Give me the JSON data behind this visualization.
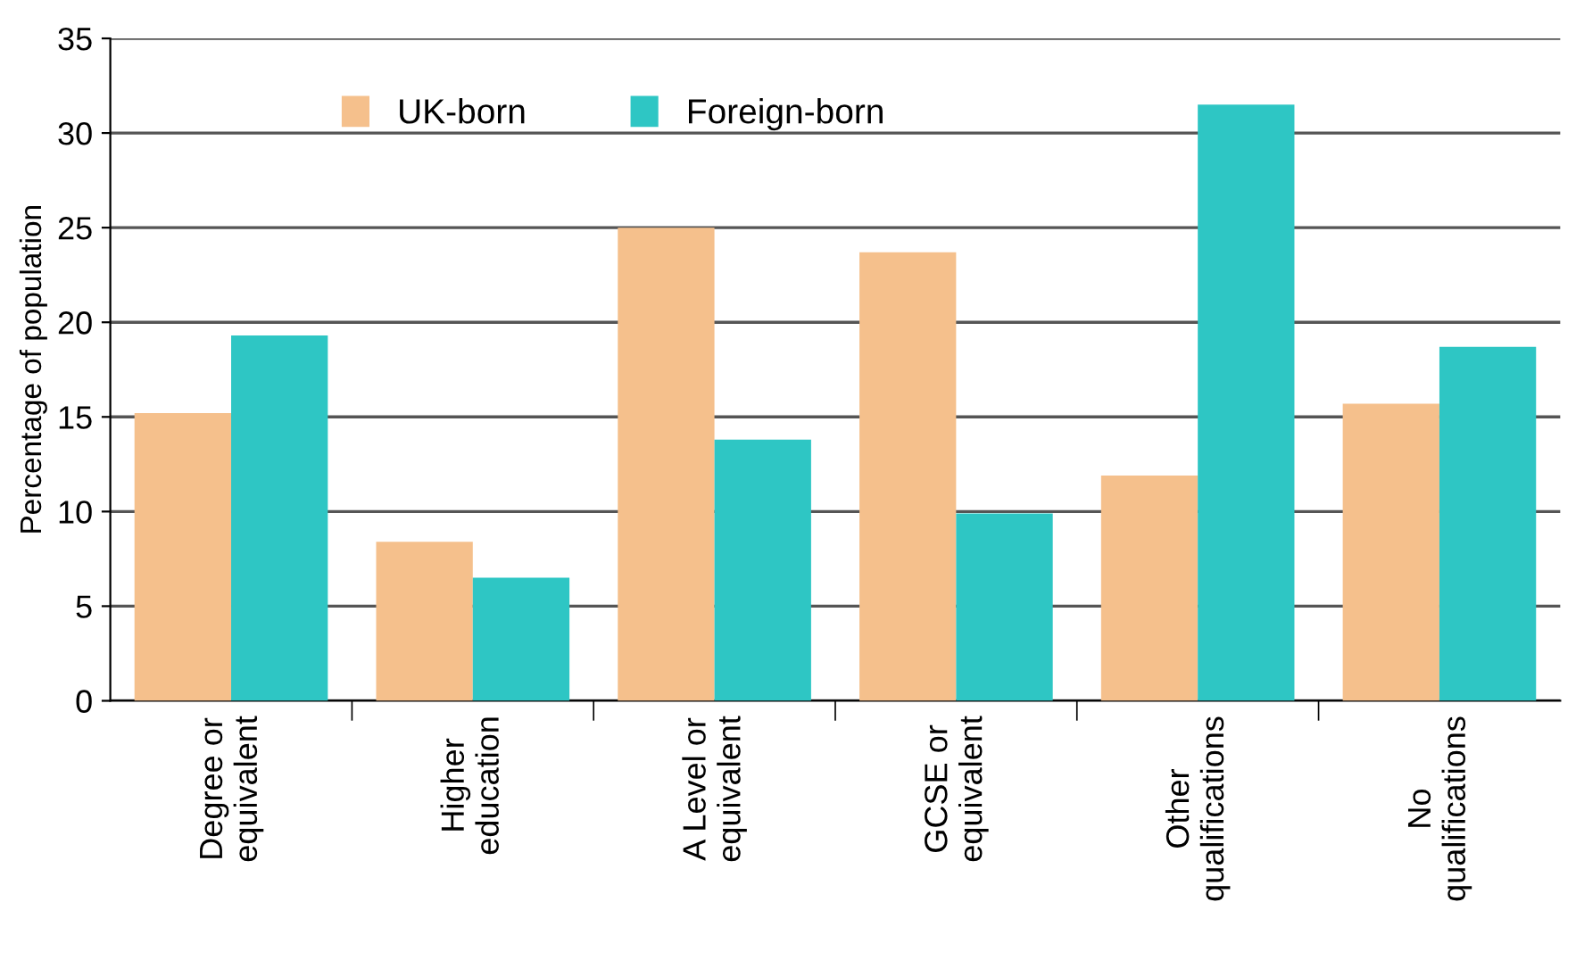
{
  "chart_data": {
    "type": "bar",
    "ylabel": "Percentage of population",
    "categories": [
      "Degree or\nequivalent",
      "Higher\neducation",
      "A Level or\nequivalent",
      "GCSE or\nequivalent",
      "Other\nqualifications",
      "No\nqualifications"
    ],
    "series": [
      {
        "name": "UK-born",
        "color": "#f5c08c",
        "values": [
          15.2,
          8.4,
          25.0,
          23.7,
          11.9,
          15.7
        ]
      },
      {
        "name": "Foreign-born",
        "color": "#2ec6c4",
        "values": [
          19.3,
          6.5,
          13.8,
          9.9,
          31.5,
          18.7
        ]
      }
    ],
    "ylim": [
      0,
      35
    ],
    "yticks": [
      0,
      5,
      10,
      15,
      20,
      25,
      30,
      35
    ],
    "grid": "y",
    "legend": "top left"
  }
}
